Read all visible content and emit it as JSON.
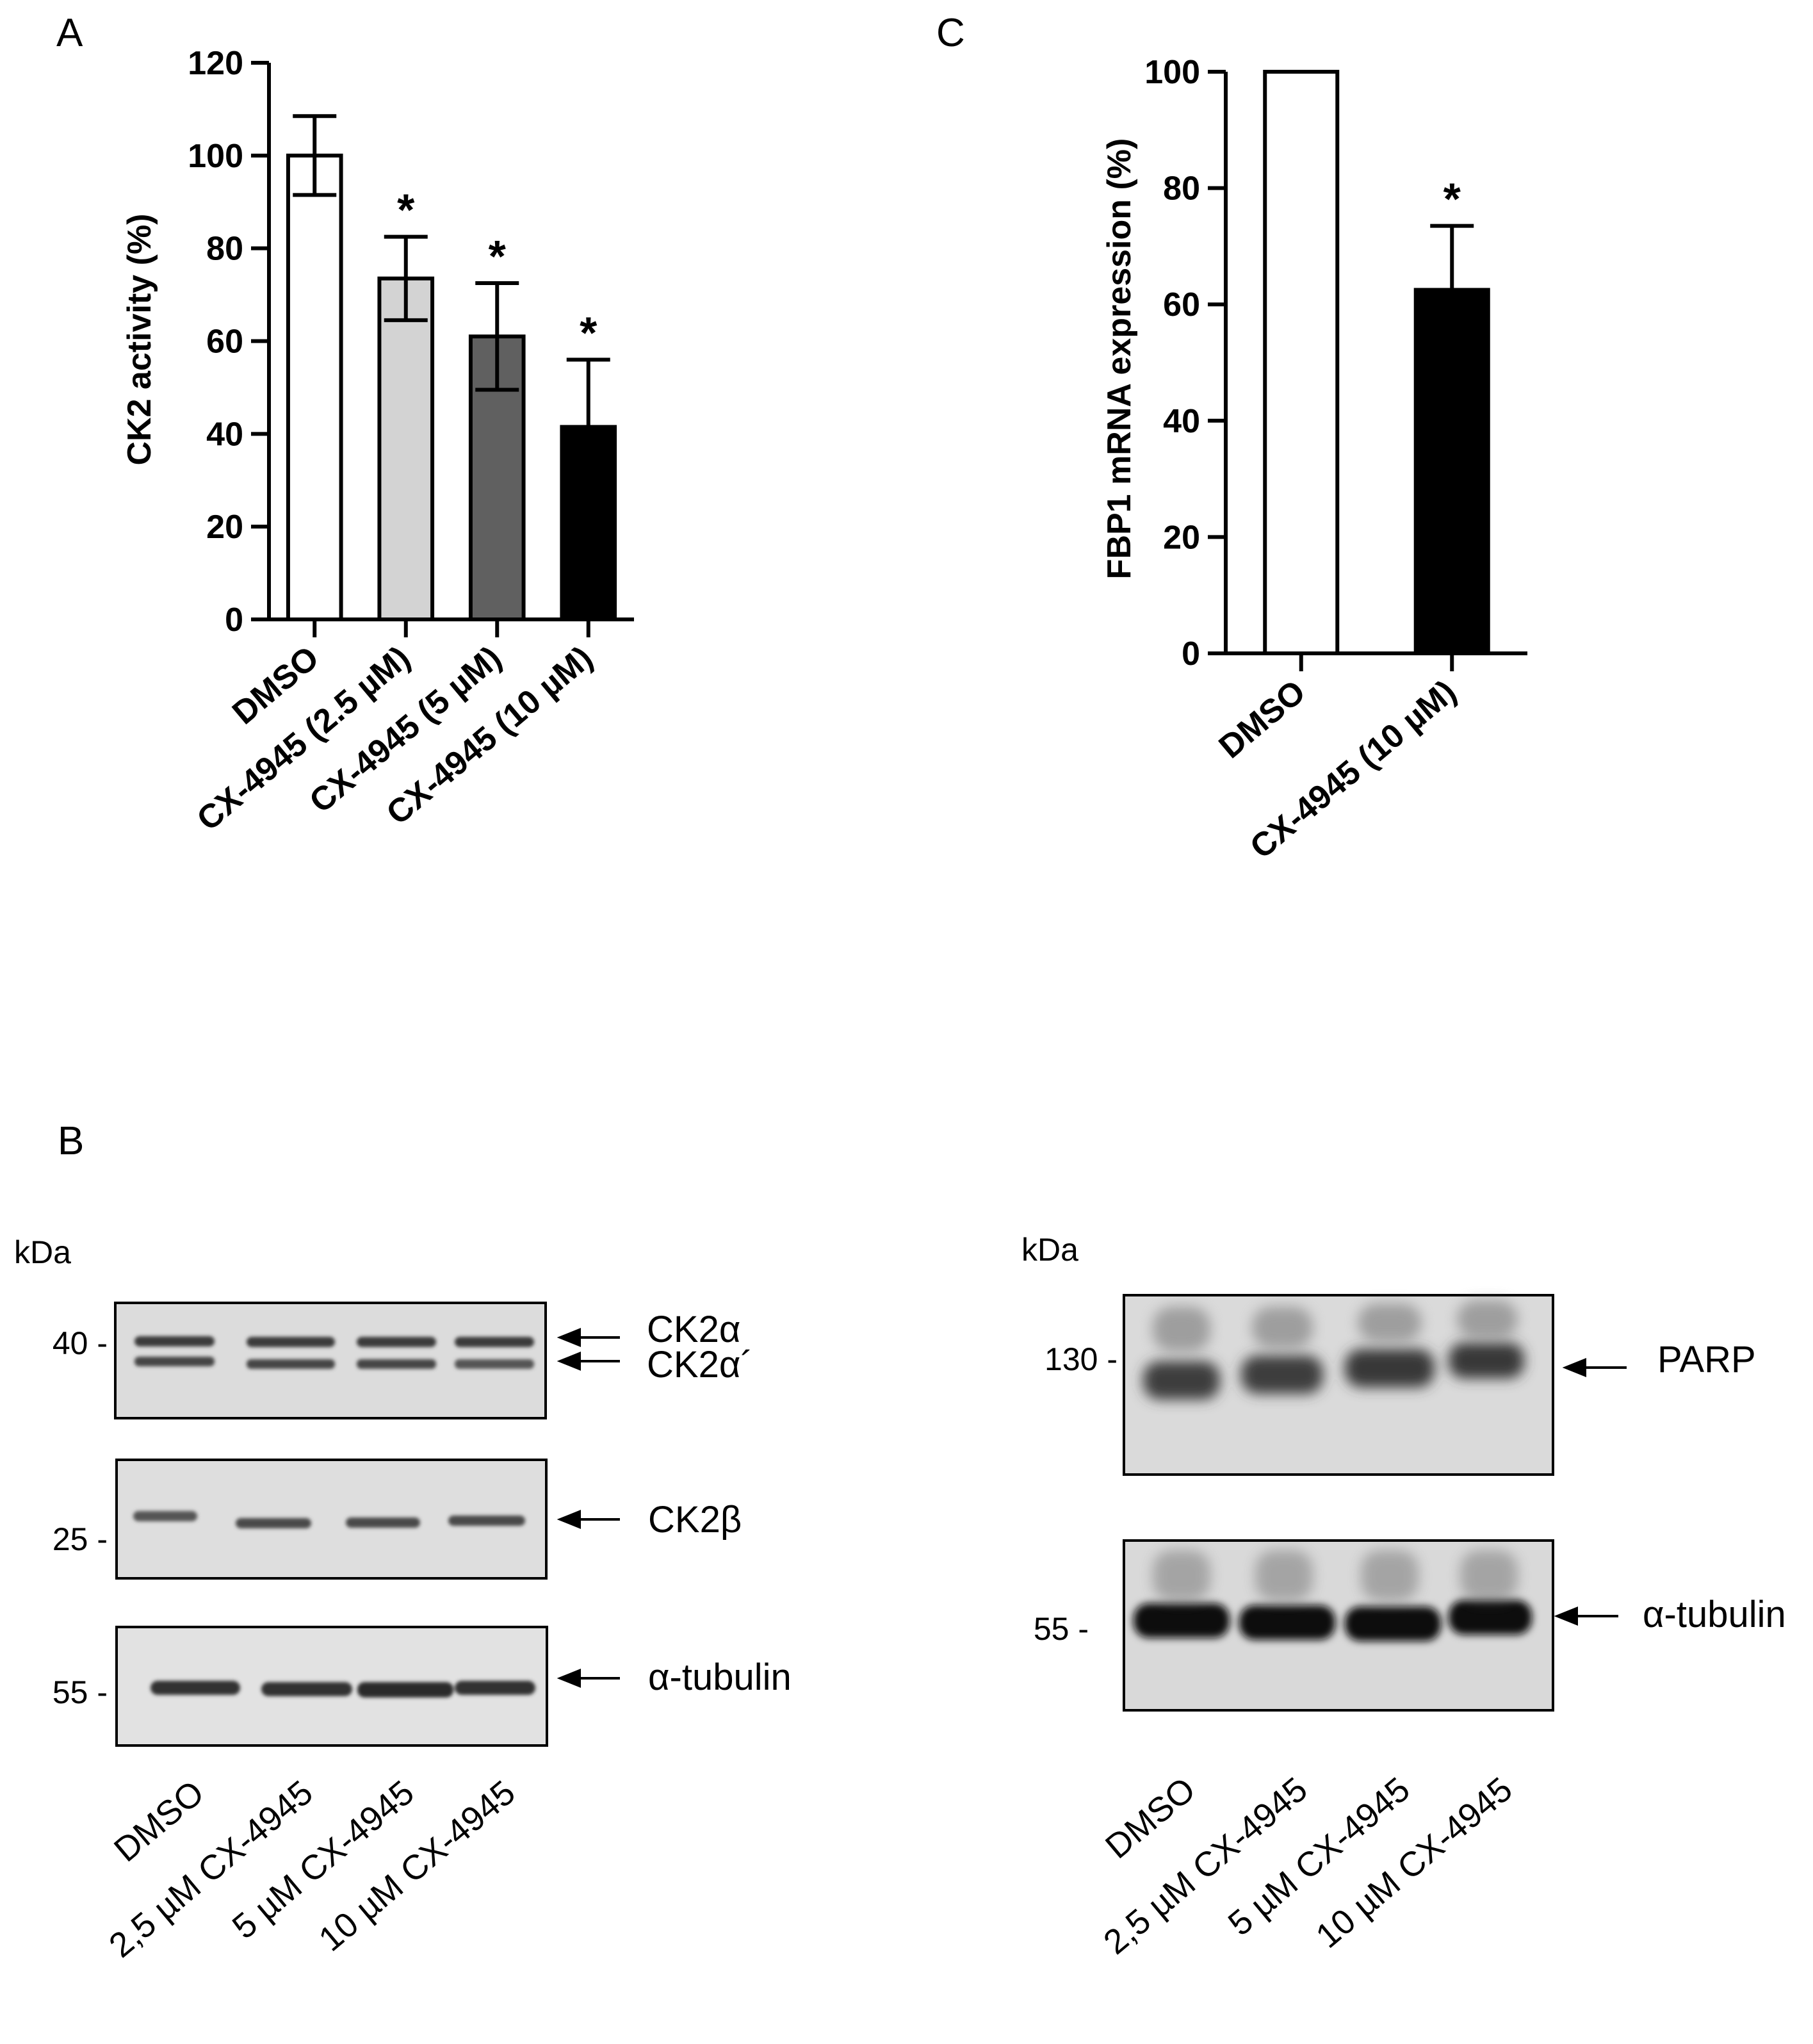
{
  "panels": {
    "a": {
      "letter": "A"
    },
    "b": {
      "letter": "B"
    },
    "c": {
      "letter": "C"
    }
  },
  "chart_data": [
    {
      "panel": "A",
      "type": "bar",
      "ylabel": "CK2 activity (%)",
      "ylim": [
        0,
        120
      ],
      "yticks": [
        "0",
        "20",
        "40",
        "60",
        "80",
        "100",
        "120"
      ],
      "categories": [
        "DMSO",
        "CX-4945 (2.5 µM)",
        "CX-4945 (5 µM)",
        "CX-4945 (10 µM)"
      ],
      "values": [
        100,
        73.5,
        61,
        41.5
      ],
      "errors": [
        8.5,
        9,
        11.5,
        14.5
      ],
      "error_style": [
        "both",
        "both",
        "both",
        "both"
      ],
      "colors": [
        "#ffffff",
        "#d3d3d3",
        "#606060",
        "#000000"
      ],
      "significance": [
        "",
        "*",
        "*",
        "*"
      ]
    },
    {
      "panel": "C",
      "type": "bar",
      "ylabel": "FBP1 mRNA expression (%)",
      "ylim": [
        0,
        100
      ],
      "yticks": [
        "0",
        "20",
        "40",
        "60",
        "80",
        "100"
      ],
      "categories": [
        "DMSO",
        "CX-4945 (10 µM)"
      ],
      "values": [
        100,
        62.5
      ],
      "errors": [
        0,
        11
      ],
      "error_style": [
        "none",
        "up"
      ],
      "colors": [
        "#ffffff",
        "#000000"
      ],
      "significance": [
        "",
        "*"
      ]
    }
  ],
  "blot_left": {
    "kda_label": "kDa",
    "markers": [
      "40 -",
      "25 -",
      "55 -"
    ],
    "bands": [
      "CK2α",
      "CK2α´",
      "CK2β",
      "α-tubulin"
    ],
    "lanes": [
      "DMSO",
      "2,5 µM CX-4945",
      "5 µM CX-4945",
      "10 µM CX-4945"
    ]
  },
  "blot_right": {
    "kda_label": "kDa",
    "markers": [
      "130 -",
      "55 -"
    ],
    "bands": [
      "PARP",
      "α-tubulin"
    ],
    "lanes": [
      "DMSO",
      "2,5 µM CX-4945",
      "5 µM CX-4945",
      "10 µM CX-4945"
    ]
  }
}
